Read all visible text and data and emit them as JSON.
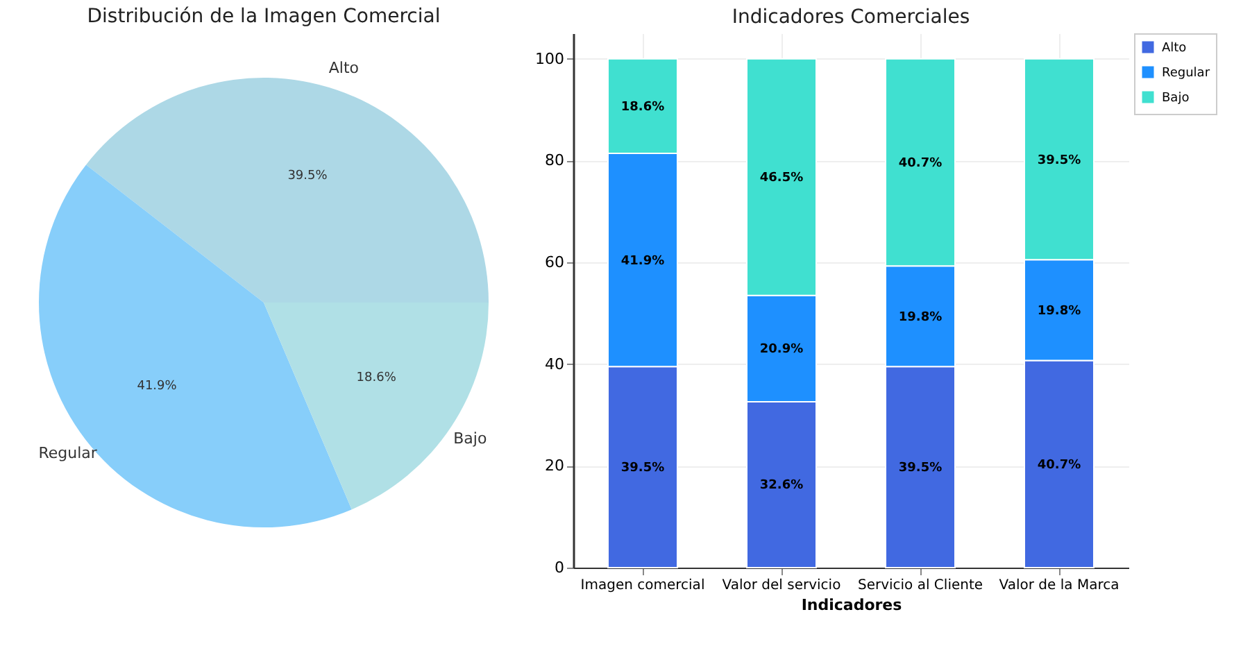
{
  "chart_data": [
    {
      "type": "pie",
      "title": "Distribución de la Imagen Comercial",
      "categories": [
        "Alto",
        "Regular",
        "Bajo"
      ],
      "values": [
        39.5,
        41.9,
        18.6
      ],
      "colors": [
        "#add8e6",
        "#87cefa",
        "#b0e0e6"
      ],
      "value_labels": [
        "39.5%",
        "41.9%",
        "18.6%"
      ],
      "legend": false
    },
    {
      "type": "bar",
      "title": "Indicadores Comerciales",
      "xlabel": "Indicadores",
      "categories": [
        "Imagen comercial",
        "Valor del servicio",
        "Servicio al Cliente",
        "Valor de la Marca"
      ],
      "stacked": true,
      "series": [
        {
          "name": "Alto",
          "color": "#4169e1",
          "values": [
            39.5,
            32.6,
            39.5,
            40.7
          ],
          "value_labels": [
            "39.5%",
            "32.6%",
            "39.5%",
            "40.7%"
          ]
        },
        {
          "name": "Regular",
          "color": "#1e90ff",
          "values": [
            41.9,
            20.9,
            19.8,
            19.8
          ],
          "value_labels": [
            "41.9%",
            "20.9%",
            "19.8%",
            "19.8%"
          ]
        },
        {
          "name": "Bajo",
          "color": "#40e0d0",
          "values": [
            18.6,
            46.5,
            40.7,
            39.5
          ],
          "value_labels": [
            "18.6%",
            "46.5%",
            "40.7%",
            "39.5%"
          ]
        }
      ],
      "ylim": [
        0,
        105
      ],
      "yticks": [
        0,
        20,
        40,
        60,
        80,
        100
      ],
      "grid": true,
      "legend": "top right"
    }
  ]
}
